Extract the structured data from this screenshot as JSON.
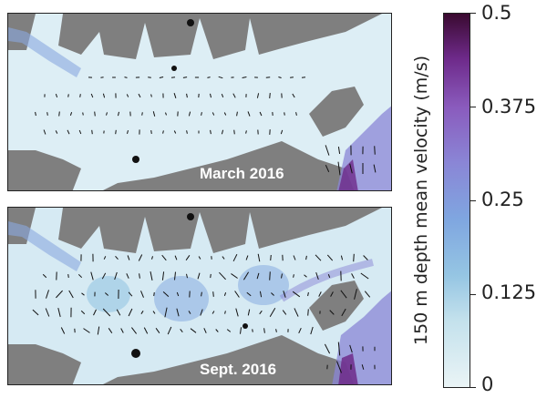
{
  "panels": [
    {
      "label": "March 2016"
    },
    {
      "label": "Sept. 2016"
    }
  ],
  "colorbar": {
    "title": "150 m depth mean velocity (m/s)",
    "ticks": [
      "0.5",
      "0.375",
      "0.25",
      "0.125",
      "0"
    ],
    "min": 0,
    "max": 0.5,
    "colors": {
      "low": "#eaf4f6",
      "mid": "#7fa6e0",
      "high": "#3a0a30"
    }
  },
  "colors": {
    "land": "#7f7f7f",
    "water_light": "#ddeef5",
    "arrow": "#111111"
  }
}
